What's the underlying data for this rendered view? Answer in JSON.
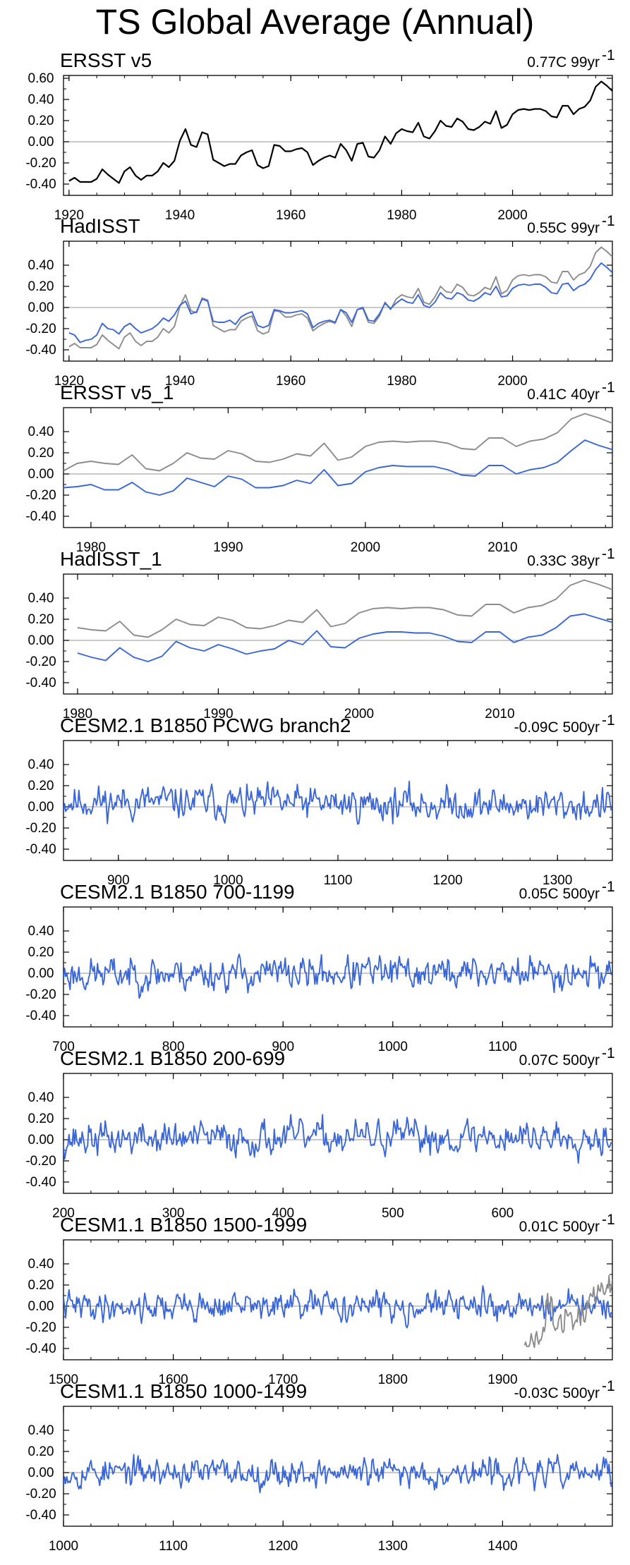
{
  "title": "TS Global Average (Annual)",
  "colors": {
    "obs": "#000000",
    "model": "#3a66d8",
    "ref": "#8c8c8c",
    "zero": "#aaaaaa",
    "frame": "#000000"
  },
  "chart_data": [
    {
      "type": "line",
      "title": "ERSST v5",
      "trend_label": "0.77C 99yr",
      "trend_sup": "-1",
      "x_range": [
        1919,
        2018
      ],
      "ylim": [
        -0.4,
        0.6
      ],
      "yticks": [
        -0.4,
        -0.2,
        0.0,
        0.2,
        0.4,
        0.6
      ],
      "ytick_labels": [
        "-0.40",
        "-0.20",
        "0.00",
        "0.20",
        "0.40",
        "0.60"
      ],
      "xticks": [
        1920,
        1940,
        1960,
        1980,
        2000
      ],
      "series": [
        {
          "name": "ERSST v5",
          "color": "black",
          "x_start": 1920,
          "values": [
            -0.37,
            -0.34,
            -0.38,
            -0.38,
            -0.38,
            -0.35,
            -0.26,
            -0.31,
            -0.35,
            -0.39,
            -0.28,
            -0.24,
            -0.32,
            -0.36,
            -0.32,
            -0.32,
            -0.28,
            -0.2,
            -0.24,
            -0.18,
            0.01,
            0.12,
            -0.03,
            -0.05,
            0.09,
            0.07,
            -0.17,
            -0.2,
            -0.23,
            -0.21,
            -0.21,
            -0.13,
            -0.1,
            -0.08,
            -0.22,
            -0.25,
            -0.23,
            -0.03,
            -0.04,
            -0.09,
            -0.09,
            -0.07,
            -0.06,
            -0.1,
            -0.22,
            -0.18,
            -0.15,
            -0.13,
            -0.15,
            -0.02,
            -0.08,
            -0.18,
            -0.02,
            -0.01,
            -0.14,
            -0.15,
            -0.08,
            0.05,
            -0.02,
            0.08,
            0.12,
            0.1,
            0.09,
            0.18,
            0.05,
            0.03,
            0.1,
            0.2,
            0.15,
            0.14,
            0.22,
            0.19,
            0.12,
            0.11,
            0.14,
            0.19,
            0.17,
            0.29,
            0.13,
            0.16,
            0.26,
            0.3,
            0.31,
            0.3,
            0.31,
            0.31,
            0.29,
            0.24,
            0.23,
            0.34,
            0.34,
            0.26,
            0.31,
            0.33,
            0.39,
            0.52,
            0.57,
            0.53,
            0.48
          ]
        }
      ]
    },
    {
      "type": "line",
      "title": "HadISST",
      "trend_label": "0.55C 99yr",
      "trend_sup": "-1",
      "x_range": [
        1919,
        2018
      ],
      "ylim": [
        -0.4,
        0.6
      ],
      "yticks": [
        -0.4,
        -0.2,
        0.0,
        0.2,
        0.4
      ],
      "ytick_labels": [
        "-0.40",
        "-0.20",
        "0.00",
        "0.20",
        "0.40"
      ],
      "xticks": [
        1920,
        1940,
        1960,
        1980,
        2000
      ],
      "series": [
        {
          "name": "ERSST v5",
          "color": "gray",
          "x_start": 1920,
          "values": [
            -0.37,
            -0.34,
            -0.38,
            -0.38,
            -0.38,
            -0.35,
            -0.26,
            -0.31,
            -0.35,
            -0.39,
            -0.28,
            -0.24,
            -0.32,
            -0.36,
            -0.32,
            -0.32,
            -0.28,
            -0.2,
            -0.24,
            -0.18,
            0.01,
            0.12,
            -0.03,
            -0.05,
            0.09,
            0.07,
            -0.17,
            -0.2,
            -0.23,
            -0.21,
            -0.21,
            -0.13,
            -0.1,
            -0.08,
            -0.22,
            -0.25,
            -0.23,
            -0.03,
            -0.04,
            -0.09,
            -0.09,
            -0.07,
            -0.06,
            -0.1,
            -0.22,
            -0.18,
            -0.15,
            -0.13,
            -0.15,
            -0.02,
            -0.08,
            -0.18,
            -0.02,
            -0.01,
            -0.14,
            -0.15,
            -0.08,
            0.05,
            -0.02,
            0.08,
            0.12,
            0.1,
            0.09,
            0.18,
            0.05,
            0.03,
            0.1,
            0.2,
            0.15,
            0.14,
            0.22,
            0.19,
            0.12,
            0.11,
            0.14,
            0.19,
            0.17,
            0.29,
            0.13,
            0.16,
            0.26,
            0.3,
            0.31,
            0.3,
            0.31,
            0.31,
            0.29,
            0.24,
            0.23,
            0.34,
            0.34,
            0.26,
            0.31,
            0.33,
            0.39,
            0.52,
            0.57,
            0.53,
            0.48
          ]
        },
        {
          "name": "HadISST",
          "color": "blue",
          "x_start": 1920,
          "values": [
            -0.24,
            -0.26,
            -0.33,
            -0.31,
            -0.3,
            -0.26,
            -0.15,
            -0.2,
            -0.21,
            -0.25,
            -0.18,
            -0.15,
            -0.2,
            -0.24,
            -0.22,
            -0.2,
            -0.16,
            -0.1,
            -0.13,
            -0.07,
            0.02,
            0.06,
            -0.06,
            -0.04,
            0.08,
            0.06,
            -0.13,
            -0.14,
            -0.14,
            -0.12,
            -0.16,
            -0.09,
            -0.06,
            -0.04,
            -0.17,
            -0.19,
            -0.17,
            -0.02,
            -0.03,
            -0.05,
            -0.05,
            -0.04,
            -0.03,
            -0.06,
            -0.19,
            -0.15,
            -0.13,
            -0.12,
            -0.14,
            -0.02,
            -0.05,
            -0.14,
            -0.02,
            0.0,
            -0.12,
            -0.13,
            -0.06,
            0.04,
            -0.01,
            0.04,
            0.08,
            0.05,
            0.04,
            0.12,
            0.02,
            0.0,
            0.05,
            0.14,
            0.09,
            0.08,
            0.14,
            0.12,
            0.07,
            0.06,
            0.09,
            0.14,
            0.12,
            0.2,
            0.1,
            0.11,
            0.18,
            0.21,
            0.22,
            0.21,
            0.22,
            0.22,
            0.19,
            0.14,
            0.13,
            0.22,
            0.23,
            0.16,
            0.2,
            0.22,
            0.27,
            0.36,
            0.42,
            0.38,
            0.33
          ]
        }
      ]
    },
    {
      "type": "line",
      "title": "ERSST v5_1",
      "trend_label": "0.41C 40yr",
      "trend_sup": "-1",
      "x_range": [
        1978,
        2018
      ],
      "ylim": [
        -0.4,
        0.6
      ],
      "yticks": [
        -0.4,
        -0.2,
        0.0,
        0.2,
        0.4
      ],
      "ytick_labels": [
        "-0.40",
        "-0.20",
        "0.00",
        "0.20",
        "0.40"
      ],
      "xticks": [
        1980,
        1990,
        2000,
        2010
      ],
      "series": [
        {
          "name": "ERSST v5",
          "color": "gray",
          "x_start": 1978,
          "values": [
            0.03,
            0.1,
            0.12,
            0.1,
            0.09,
            0.18,
            0.05,
            0.03,
            0.1,
            0.2,
            0.15,
            0.14,
            0.22,
            0.19,
            0.12,
            0.11,
            0.14,
            0.19,
            0.17,
            0.29,
            0.13,
            0.16,
            0.26,
            0.3,
            0.31,
            0.3,
            0.31,
            0.31,
            0.29,
            0.24,
            0.23,
            0.34,
            0.34,
            0.26,
            0.31,
            0.33,
            0.39,
            0.52,
            0.57,
            0.53,
            0.48
          ]
        },
        {
          "name": "ERSST v5_1",
          "color": "blue",
          "x_start": 1978,
          "values": [
            -0.13,
            -0.12,
            -0.1,
            -0.15,
            -0.15,
            -0.08,
            -0.17,
            -0.2,
            -0.16,
            -0.04,
            -0.08,
            -0.12,
            -0.02,
            -0.05,
            -0.13,
            -0.13,
            -0.11,
            -0.06,
            -0.09,
            0.04,
            -0.11,
            -0.09,
            0.02,
            0.06,
            0.08,
            0.07,
            0.07,
            0.07,
            0.04,
            -0.01,
            -0.02,
            0.08,
            0.08,
            0.0,
            0.04,
            0.06,
            0.11,
            0.22,
            0.32,
            0.27,
            0.23
          ]
        }
      ]
    },
    {
      "type": "line",
      "title": "HadISST_1",
      "trend_label": "0.33C 38yr",
      "trend_sup": "-1",
      "x_range": [
        1979,
        2018
      ],
      "ylim": [
        -0.4,
        0.6
      ],
      "yticks": [
        -0.4,
        -0.2,
        0.0,
        0.2,
        0.4
      ],
      "ytick_labels": [
        "-0.40",
        "-0.20",
        "0.00",
        "0.20",
        "0.40"
      ],
      "xticks": [
        1980,
        1990,
        2000,
        2010
      ],
      "series": [
        {
          "name": "ERSST v5",
          "color": "gray",
          "x_start": 1980,
          "values": [
            0.12,
            0.1,
            0.09,
            0.18,
            0.05,
            0.03,
            0.1,
            0.2,
            0.15,
            0.14,
            0.22,
            0.19,
            0.12,
            0.11,
            0.14,
            0.19,
            0.17,
            0.29,
            0.13,
            0.16,
            0.26,
            0.3,
            0.31,
            0.3,
            0.31,
            0.31,
            0.29,
            0.24,
            0.23,
            0.34,
            0.34,
            0.26,
            0.31,
            0.33,
            0.39,
            0.52,
            0.57,
            0.53,
            0.48
          ]
        },
        {
          "name": "HadISST_1",
          "color": "blue",
          "x_start": 1980,
          "values": [
            -0.12,
            -0.16,
            -0.19,
            -0.07,
            -0.16,
            -0.2,
            -0.15,
            -0.01,
            -0.07,
            -0.1,
            -0.04,
            -0.08,
            -0.13,
            -0.1,
            -0.08,
            0.0,
            -0.04,
            0.09,
            -0.06,
            -0.07,
            0.02,
            0.06,
            0.08,
            0.08,
            0.07,
            0.07,
            0.04,
            -0.01,
            -0.02,
            0.08,
            0.08,
            -0.02,
            0.03,
            0.05,
            0.12,
            0.23,
            0.25,
            0.21,
            0.17
          ]
        }
      ]
    },
    {
      "type": "line",
      "title": "CESM2.1 B1850 PCWG branch2",
      "trend_label": "-0.09C 500yr",
      "trend_sup": "-1",
      "x_range": [
        850,
        1350
      ],
      "ylim": [
        -0.4,
        0.6
      ],
      "yticks": [
        -0.4,
        -0.2,
        0.0,
        0.2,
        0.4
      ],
      "ytick_labels": [
        "-0.40",
        "-0.20",
        "0.00",
        "0.20",
        "0.40"
      ],
      "xticks": [
        900,
        1000,
        1100,
        1200,
        1300
      ],
      "series": [
        {
          "name": "CESM2.1 B1850 PCWG branch2",
          "color": "blue",
          "x_start": 850,
          "length": 500,
          "synthetic": {
            "seed": 11,
            "mean": 0.03,
            "amp": 0.07,
            "drift": -0.04,
            "min": -0.24,
            "max": 0.24
          }
        }
      ]
    },
    {
      "type": "line",
      "title": "CESM2.1 B1850 700-1199",
      "trend_label": "0.05C 500yr",
      "trend_sup": "-1",
      "x_range": [
        700,
        1200
      ],
      "ylim": [
        -0.4,
        0.6
      ],
      "yticks": [
        -0.4,
        -0.2,
        0.0,
        0.2,
        0.4
      ],
      "ytick_labels": [
        "-0.40",
        "-0.20",
        "0.00",
        "0.20",
        "0.40"
      ],
      "xticks": [
        700,
        800,
        900,
        1000,
        1100
      ],
      "series": [
        {
          "name": "CESM2.1 B1850 700-1199",
          "color": "blue",
          "x_start": 700,
          "length": 500,
          "synthetic": {
            "seed": 23,
            "mean": 0.0,
            "amp": 0.07,
            "drift": 0.02,
            "min": -0.26,
            "max": 0.23
          }
        }
      ]
    },
    {
      "type": "line",
      "title": "CESM2.1 B1850 200-699",
      "trend_label": "0.07C 500yr",
      "trend_sup": "-1",
      "x_range": [
        200,
        700
      ],
      "ylim": [
        -0.4,
        0.6
      ],
      "yticks": [
        -0.4,
        -0.2,
        0.0,
        0.2,
        0.4
      ],
      "ytick_labels": [
        "-0.40",
        "-0.20",
        "0.00",
        "0.20",
        "0.40"
      ],
      "xticks": [
        200,
        300,
        400,
        500,
        600
      ],
      "series": [
        {
          "name": "CESM2.1 B1850 200-699",
          "color": "blue",
          "x_start": 200,
          "length": 500,
          "synthetic": {
            "seed": 37,
            "mean": 0.02,
            "amp": 0.07,
            "drift": 0.03,
            "min": -0.3,
            "max": 0.27
          }
        }
      ]
    },
    {
      "type": "line",
      "title": "CESM1.1 B1850 1500-1999",
      "trend_label": "0.01C 500yr",
      "trend_sup": "-1",
      "x_range": [
        1500,
        2000
      ],
      "ylim": [
        -0.4,
        0.6
      ],
      "yticks": [
        -0.4,
        -0.2,
        0.0,
        0.2,
        0.4
      ],
      "ytick_labels": [
        "-0.40",
        "-0.20",
        "0.00",
        "0.20",
        "0.40"
      ],
      "xticks": [
        1500,
        1600,
        1700,
        1800,
        1900
      ],
      "series": [
        {
          "name": "CESM1.1 B1850 1500-1999",
          "color": "blue",
          "x_start": 1500,
          "length": 500,
          "synthetic": {
            "seed": 41,
            "mean": 0.0,
            "amp": 0.06,
            "drift": 0.0,
            "min": -0.24,
            "max": 0.2
          }
        },
        {
          "name": "ERSST v5",
          "color": "gray",
          "x_start": 1920,
          "values": [
            -0.37,
            -0.34,
            -0.38,
            -0.38,
            -0.38,
            -0.35,
            -0.26,
            -0.31,
            -0.35,
            -0.39,
            -0.28,
            -0.24,
            -0.32,
            -0.36,
            -0.32,
            -0.32,
            -0.28,
            -0.2,
            -0.24,
            -0.18,
            0.01,
            0.12,
            -0.03,
            -0.05,
            0.09,
            0.07,
            -0.17,
            -0.2,
            -0.23,
            -0.21,
            -0.21,
            -0.13,
            -0.1,
            -0.08,
            -0.22,
            -0.25,
            -0.23,
            -0.03,
            -0.04,
            -0.09,
            -0.09,
            -0.07,
            -0.06,
            -0.1,
            -0.22,
            -0.18,
            -0.15,
            -0.13,
            -0.15,
            -0.02,
            -0.08,
            -0.18,
            -0.02,
            -0.01,
            -0.14,
            -0.15,
            -0.08,
            0.05,
            -0.02,
            0.08,
            0.12,
            0.1,
            0.09,
            0.18,
            0.05,
            0.03,
            0.1,
            0.2,
            0.15,
            0.14,
            0.22,
            0.19,
            0.12,
            0.11,
            0.14,
            0.19,
            0.17,
            0.29,
            0.13,
            0.16,
            0.26
          ]
        }
      ]
    },
    {
      "type": "line",
      "title": "CESM1.1 B1850 1000-1499",
      "trend_label": "-0.03C 500yr",
      "trend_sup": "-1",
      "x_range": [
        1000,
        1500
      ],
      "ylim": [
        -0.4,
        0.6
      ],
      "yticks": [
        -0.4,
        -0.2,
        0.0,
        0.2,
        0.4
      ],
      "ytick_labels": [
        "-0.40",
        "-0.20",
        "0.00",
        "0.20",
        "0.40"
      ],
      "xticks": [
        1000,
        1100,
        1200,
        1300,
        1400
      ],
      "series": [
        {
          "name": "CESM1.1 B1850 1000-1499",
          "color": "blue",
          "x_start": 1000,
          "length": 500,
          "synthetic": {
            "seed": 53,
            "mean": 0.0,
            "amp": 0.06,
            "drift": -0.01,
            "min": -0.2,
            "max": 0.17
          }
        }
      ]
    }
  ]
}
